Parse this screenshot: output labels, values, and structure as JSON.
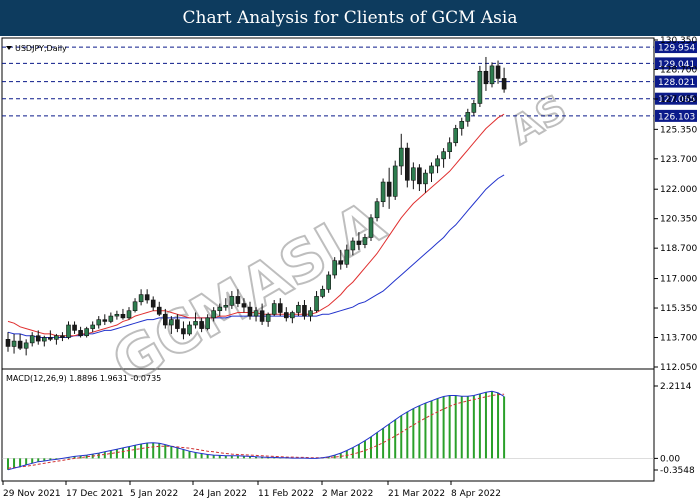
{
  "banner": {
    "title": "Chart Analysis for Clients of GCM Asia"
  },
  "colors": {
    "banner_bg": "#0d3b5e",
    "bull_candle": "#2e7d4f",
    "bear_candle": "#1a1a1a",
    "ma_fast": "#e03030",
    "ma_slow": "#2233cc",
    "level_line": "#0b1a8a",
    "macd_hist": "#2aa02a",
    "macd_signal": "#d03030",
    "macd_line": "#2233cc",
    "watermark": "#8a8a8a"
  },
  "watermark": {
    "text": "GCMASIA",
    "logo": "GCMASIA"
  },
  "chart_data": [
    {
      "type": "candlestick",
      "title": "USDJPY,Daily",
      "ylim": [
        112.05,
        130.35
      ],
      "y_ticks": [
        "130.350",
        "128.700",
        "127.050",
        "125.350",
        "123.700",
        "122.000",
        "120.350",
        "118.700",
        "117.000",
        "115.350",
        "113.700",
        "112.050"
      ],
      "y_tick_values": [
        130.35,
        128.7,
        127.05,
        125.35,
        123.7,
        122.0,
        120.35,
        118.7,
        117.0,
        115.35,
        113.7,
        112.05
      ],
      "x_ticks": [
        "29 Nov 2021",
        "17 Dec 2021",
        "5 Jan 2022",
        "24 Jan 2022",
        "11 Feb 2022",
        "2 Mar 2022",
        "21 Mar 2022",
        "8 Apr 2022"
      ],
      "levels": [
        "129.954",
        "129.041",
        "128.021",
        "127.065",
        "126.103"
      ],
      "level_values": [
        129.954,
        129.041,
        128.021,
        127.065,
        126.103
      ],
      "candles": [
        [
          113.6,
          114.0,
          112.9,
          113.2
        ],
        [
          113.2,
          113.9,
          112.8,
          113.5
        ],
        [
          113.5,
          113.9,
          113.0,
          113.1
        ],
        [
          113.1,
          113.6,
          112.7,
          113.4
        ],
        [
          113.4,
          114.0,
          113.2,
          113.8
        ],
        [
          113.8,
          114.1,
          113.3,
          113.5
        ],
        [
          113.5,
          113.8,
          113.2,
          113.7
        ],
        [
          113.7,
          114.1,
          113.5,
          113.6
        ],
        [
          113.6,
          113.9,
          113.3,
          113.8
        ],
        [
          113.8,
          114.0,
          113.5,
          113.7
        ],
        [
          113.7,
          114.6,
          113.6,
          114.4
        ],
        [
          114.4,
          114.6,
          113.9,
          114.1
        ],
        [
          114.1,
          114.3,
          113.7,
          113.8
        ],
        [
          113.8,
          114.3,
          113.7,
          114.2
        ],
        [
          114.2,
          114.6,
          114.0,
          114.4
        ],
        [
          114.4,
          114.9,
          114.2,
          114.7
        ],
        [
          114.7,
          115.0,
          114.4,
          114.6
        ],
        [
          114.6,
          115.1,
          114.5,
          114.9
        ],
        [
          114.9,
          115.2,
          114.7,
          115.0
        ],
        [
          115.0,
          115.3,
          114.7,
          114.8
        ],
        [
          114.8,
          115.4,
          114.7,
          115.2
        ],
        [
          115.2,
          115.9,
          115.1,
          115.7
        ],
        [
          115.7,
          116.4,
          115.5,
          116.1
        ],
        [
          116.1,
          116.4,
          115.6,
          115.8
        ],
        [
          115.8,
          116.0,
          115.2,
          115.4
        ],
        [
          115.4,
          115.7,
          114.9,
          115.0
        ],
        [
          115.0,
          115.3,
          114.2,
          114.4
        ],
        [
          114.4,
          114.9,
          113.9,
          114.7
        ],
        [
          114.7,
          115.0,
          114.0,
          114.2
        ],
        [
          114.2,
          114.6,
          113.6,
          113.9
        ],
        [
          113.9,
          114.6,
          113.8,
          114.4
        ],
        [
          114.4,
          115.1,
          114.2,
          114.6
        ],
        [
          114.6,
          114.8,
          114.0,
          114.2
        ],
        [
          114.2,
          115.0,
          114.1,
          114.8
        ],
        [
          114.8,
          115.4,
          114.6,
          115.2
        ],
        [
          115.2,
          115.6,
          114.9,
          115.4
        ],
        [
          115.4,
          115.9,
          115.2,
          115.5
        ],
        [
          115.5,
          116.3,
          115.3,
          116.0
        ],
        [
          116.0,
          116.4,
          115.4,
          115.6
        ],
        [
          115.6,
          115.9,
          115.1,
          115.4
        ],
        [
          115.4,
          115.7,
          114.7,
          114.9
        ],
        [
          114.9,
          115.4,
          114.6,
          115.2
        ],
        [
          115.2,
          115.6,
          114.4,
          114.6
        ],
        [
          114.6,
          115.1,
          114.3,
          115.0
        ],
        [
          115.0,
          115.8,
          114.9,
          115.6
        ],
        [
          115.6,
          115.9,
          114.9,
          115.1
        ],
        [
          115.1,
          115.4,
          114.6,
          114.8
        ],
        [
          114.8,
          115.2,
          114.5,
          115.1
        ],
        [
          115.1,
          115.7,
          114.9,
          115.5
        ],
        [
          115.5,
          115.8,
          114.7,
          114.9
        ],
        [
          114.9,
          115.4,
          114.6,
          115.2
        ],
        [
          115.2,
          116.3,
          115.1,
          116.0
        ],
        [
          116.0,
          116.6,
          115.9,
          116.4
        ],
        [
          116.4,
          117.4,
          116.2,
          117.2
        ],
        [
          117.2,
          118.2,
          117.0,
          118.0
        ],
        [
          118.0,
          118.6,
          117.5,
          117.8
        ],
        [
          117.8,
          118.9,
          117.6,
          118.6
        ],
        [
          118.6,
          119.3,
          118.3,
          119.1
        ],
        [
          119.1,
          119.6,
          118.6,
          118.9
        ],
        [
          118.9,
          119.5,
          118.7,
          119.3
        ],
        [
          119.3,
          120.6,
          119.1,
          120.4
        ],
        [
          120.4,
          121.5,
          120.2,
          121.3
        ],
        [
          121.3,
          122.6,
          121.0,
          122.4
        ],
        [
          122.4,
          123.2,
          120.9,
          121.6
        ],
        [
          121.6,
          123.6,
          121.4,
          123.3
        ],
        [
          123.3,
          125.1,
          122.8,
          124.3
        ],
        [
          124.3,
          124.6,
          122.1,
          122.5
        ],
        [
          122.5,
          123.5,
          122.0,
          123.2
        ],
        [
          123.2,
          123.4,
          121.9,
          122.3
        ],
        [
          122.3,
          123.1,
          121.8,
          122.9
        ],
        [
          122.9,
          123.5,
          122.4,
          123.3
        ],
        [
          123.3,
          123.9,
          122.9,
          123.7
        ],
        [
          123.7,
          124.3,
          123.2,
          124.1
        ],
        [
          124.1,
          124.9,
          123.7,
          124.6
        ],
        [
          124.6,
          125.6,
          124.4,
          125.4
        ],
        [
          125.4,
          126.0,
          125.0,
          125.8
        ],
        [
          125.8,
          126.5,
          125.5,
          126.3
        ],
        [
          126.3,
          127.0,
          126.1,
          126.8
        ],
        [
          126.8,
          128.9,
          126.6,
          128.6
        ],
        [
          128.6,
          129.4,
          127.5,
          127.9
        ],
        [
          127.9,
          129.1,
          127.7,
          128.9
        ],
        [
          128.9,
          129.2,
          127.9,
          128.2
        ],
        [
          128.2,
          128.8,
          127.4,
          127.6
        ]
      ],
      "ma_fast": [
        114.6,
        114.5,
        114.3,
        114.2,
        114.1,
        114.0,
        113.9,
        113.9,
        113.8,
        113.8,
        113.8,
        113.8,
        113.9,
        113.9,
        114.0,
        114.1,
        114.2,
        114.3,
        114.4,
        114.6,
        114.7,
        114.9,
        115.0,
        115.1,
        115.2,
        115.2,
        115.2,
        115.1,
        115.0,
        114.9,
        114.8,
        114.8,
        114.8,
        114.8,
        114.8,
        114.9,
        114.9,
        115.0,
        115.1,
        115.1,
        115.1,
        115.1,
        115.0,
        115.0,
        115.0,
        115.0,
        115.0,
        115.0,
        115.0,
        115.0,
        115.0,
        115.1,
        115.3,
        115.5,
        115.8,
        116.1,
        116.5,
        116.8,
        117.2,
        117.6,
        118.0,
        118.4,
        118.9,
        119.4,
        119.9,
        120.4,
        120.8,
        121.2,
        121.5,
        121.8,
        122.1,
        122.4,
        122.7,
        123.0,
        123.4,
        123.8,
        124.2,
        124.6,
        125.0,
        125.4,
        125.7,
        126.0,
        126.2
      ],
      "ma_slow": [
        114.0,
        113.9,
        113.9,
        113.8,
        113.8,
        113.7,
        113.7,
        113.7,
        113.7,
        113.7,
        113.7,
        113.8,
        113.8,
        113.9,
        113.9,
        114.0,
        114.1,
        114.1,
        114.2,
        114.3,
        114.4,
        114.5,
        114.6,
        114.7,
        114.7,
        114.8,
        114.8,
        114.8,
        114.8,
        114.8,
        114.8,
        114.8,
        114.8,
        114.8,
        114.8,
        114.8,
        114.8,
        114.9,
        114.9,
        114.9,
        114.9,
        114.9,
        114.9,
        114.9,
        114.9,
        114.9,
        114.9,
        114.9,
        114.9,
        114.9,
        114.9,
        114.9,
        115.0,
        115.0,
        115.1,
        115.2,
        115.3,
        115.4,
        115.6,
        115.7,
        115.9,
        116.1,
        116.3,
        116.6,
        116.9,
        117.2,
        117.5,
        117.8,
        118.1,
        118.4,
        118.7,
        119.0,
        119.3,
        119.7,
        120.0,
        120.4,
        120.8,
        121.2,
        121.6,
        122.0,
        122.3,
        122.6,
        122.8
      ]
    },
    {
      "type": "macd",
      "title": "MACD(12,26,9) 1.8896 1.9631 -0.0735",
      "ylim": [
        -0.3548,
        2.2114
      ],
      "y_ticks": [
        "2.2114",
        "0.00",
        "-0.3548"
      ],
      "y_tick_values": [
        2.2114,
        0.0,
        -0.3548
      ],
      "macd": [
        -0.35,
        -0.3,
        -0.25,
        -0.2,
        -0.15,
        -0.1,
        -0.08,
        -0.05,
        -0.03,
        0.0,
        0.03,
        0.06,
        0.08,
        0.1,
        0.13,
        0.16,
        0.2,
        0.24,
        0.28,
        0.32,
        0.36,
        0.4,
        0.44,
        0.47,
        0.48,
        0.46,
        0.42,
        0.37,
        0.32,
        0.27,
        0.22,
        0.18,
        0.15,
        0.12,
        0.1,
        0.09,
        0.08,
        0.08,
        0.08,
        0.07,
        0.06,
        0.05,
        0.04,
        0.03,
        0.03,
        0.02,
        0.02,
        0.01,
        0.01,
        0.01,
        0.0,
        0.0,
        0.02,
        0.05,
        0.1,
        0.16,
        0.24,
        0.33,
        0.43,
        0.54,
        0.66,
        0.79,
        0.92,
        1.05,
        1.18,
        1.31,
        1.42,
        1.52,
        1.61,
        1.69,
        1.76,
        1.83,
        1.89,
        1.92,
        1.92,
        1.9,
        1.9,
        1.92,
        1.97,
        2.02,
        2.05,
        2.0,
        1.89
      ],
      "signal": [
        -0.3,
        -0.28,
        -0.26,
        -0.24,
        -0.21,
        -0.18,
        -0.15,
        -0.12,
        -0.09,
        -0.06,
        -0.03,
        0.0,
        0.02,
        0.05,
        0.07,
        0.1,
        0.12,
        0.15,
        0.18,
        0.21,
        0.24,
        0.27,
        0.3,
        0.33,
        0.35,
        0.37,
        0.37,
        0.37,
        0.35,
        0.33,
        0.31,
        0.28,
        0.25,
        0.22,
        0.2,
        0.17,
        0.15,
        0.13,
        0.12,
        0.11,
        0.1,
        0.09,
        0.08,
        0.07,
        0.06,
        0.05,
        0.04,
        0.04,
        0.03,
        0.03,
        0.02,
        0.02,
        0.02,
        0.03,
        0.04,
        0.06,
        0.09,
        0.13,
        0.18,
        0.24,
        0.31,
        0.39,
        0.48,
        0.58,
        0.68,
        0.79,
        0.91,
        1.02,
        1.13,
        1.23,
        1.33,
        1.42,
        1.51,
        1.59,
        1.66,
        1.71,
        1.76,
        1.8,
        1.84,
        1.88,
        1.92,
        1.95,
        1.96
      ]
    }
  ]
}
